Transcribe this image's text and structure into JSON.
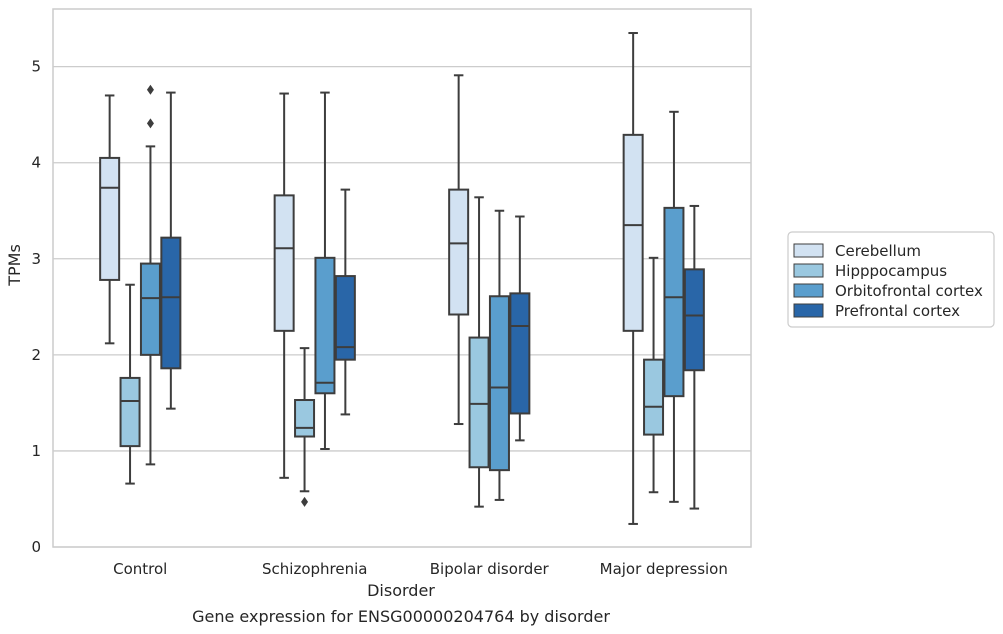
{
  "chart_data": {
    "type": "box",
    "title": "",
    "caption": "Gene expression for ENSG00000204764 by disorder",
    "xlabel": "Disorder",
    "ylabel": "TPMs",
    "ylim": [
      0,
      5.6
    ],
    "yticks": [
      0,
      1,
      2,
      3,
      4,
      5
    ],
    "grid": "horizontal",
    "legend_position": "right",
    "categories": [
      "Control",
      "Schizophrenia",
      "Bipolar disorder",
      "Major depression"
    ],
    "series": [
      {
        "name": "Cerebellum",
        "color": "#d2e2f2",
        "boxes": [
          {
            "whislo": 2.12,
            "q1": 2.78,
            "med": 3.74,
            "q3": 4.05,
            "whishi": 4.7,
            "fliers": []
          },
          {
            "whislo": 0.72,
            "q1": 2.25,
            "med": 3.11,
            "q3": 3.66,
            "whishi": 4.72,
            "fliers": []
          },
          {
            "whislo": 1.28,
            "q1": 2.42,
            "med": 3.16,
            "q3": 3.72,
            "whishi": 4.91,
            "fliers": []
          },
          {
            "whislo": 0.24,
            "q1": 2.25,
            "med": 3.35,
            "q3": 4.29,
            "whishi": 5.35,
            "fliers": []
          }
        ]
      },
      {
        "name": "Hipppocampus",
        "color": "#9ac8e0",
        "boxes": [
          {
            "whislo": 0.66,
            "q1": 1.05,
            "med": 1.52,
            "q3": 1.76,
            "whishi": 2.73,
            "fliers": []
          },
          {
            "whislo": 0.58,
            "q1": 1.15,
            "med": 1.24,
            "q3": 1.53,
            "whishi": 2.07,
            "fliers": [
              0.47
            ]
          },
          {
            "whislo": 0.42,
            "q1": 0.83,
            "med": 1.49,
            "q3": 2.18,
            "whishi": 3.64,
            "fliers": []
          },
          {
            "whislo": 0.57,
            "q1": 1.17,
            "med": 1.46,
            "q3": 1.95,
            "whishi": 3.01,
            "fliers": []
          }
        ]
      },
      {
        "name": "Orbitofrontal cortex",
        "color": "#5a9ecd",
        "boxes": [
          {
            "whislo": 0.86,
            "q1": 2.0,
            "med": 2.59,
            "q3": 2.95,
            "whishi": 4.17,
            "fliers": [
              4.41,
              4.76
            ]
          },
          {
            "whislo": 1.02,
            "q1": 1.6,
            "med": 1.71,
            "q3": 3.01,
            "whishi": 4.73,
            "fliers": []
          },
          {
            "whislo": 0.49,
            "q1": 0.8,
            "med": 1.66,
            "q3": 2.61,
            "whishi": 3.5,
            "fliers": []
          },
          {
            "whislo": 0.47,
            "q1": 1.57,
            "med": 2.6,
            "q3": 3.53,
            "whishi": 4.53,
            "fliers": []
          }
        ]
      },
      {
        "name": "Prefrontal cortex",
        "color": "#2966a8",
        "boxes": [
          {
            "whislo": 1.44,
            "q1": 1.86,
            "med": 2.6,
            "q3": 3.22,
            "whishi": 4.73,
            "fliers": []
          },
          {
            "whislo": 1.38,
            "q1": 1.95,
            "med": 2.08,
            "q3": 2.82,
            "whishi": 3.72,
            "fliers": []
          },
          {
            "whislo": 1.11,
            "q1": 1.39,
            "med": 2.3,
            "q3": 2.64,
            "whishi": 3.44,
            "fliers": []
          },
          {
            "whislo": 0.4,
            "q1": 1.84,
            "med": 2.41,
            "q3": 2.89,
            "whishi": 3.55,
            "fliers": []
          }
        ]
      }
    ]
  }
}
